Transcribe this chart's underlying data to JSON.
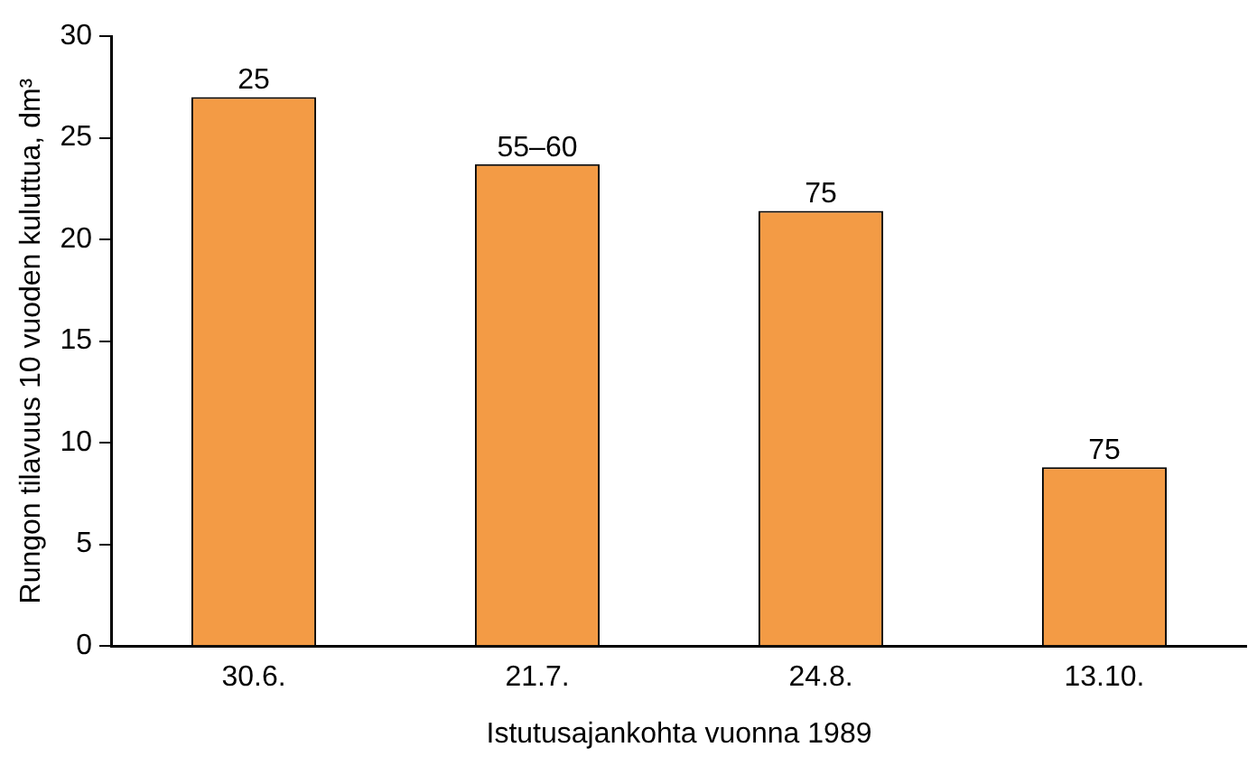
{
  "chart_data": {
    "type": "bar",
    "xlabel": "Istutusajankohta vuonna 1989",
    "ylabel": "Rungon tilavuus 10 vuoden kuluttua, dm³",
    "categories": [
      "30.6.",
      "21.7.",
      "24.8.",
      "13.10."
    ],
    "values": [
      27.0,
      23.7,
      21.4,
      8.8
    ],
    "annotations": [
      {
        "text": "25",
        "x": "30.6.",
        "y": 27.0
      },
      {
        "text": "55–60",
        "x": "21.7.",
        "y": 23.7
      },
      {
        "text": "75",
        "x": "24.8.",
        "y": 21.4
      },
      {
        "text": "75",
        "x": "13.10.",
        "y": 8.8
      }
    ],
    "color": "#f39b45",
    "ylim": [
      0,
      30
    ],
    "yticks": [
      0,
      5,
      10,
      15,
      20,
      25,
      30
    ],
    "grid": false,
    "legend": false
  }
}
